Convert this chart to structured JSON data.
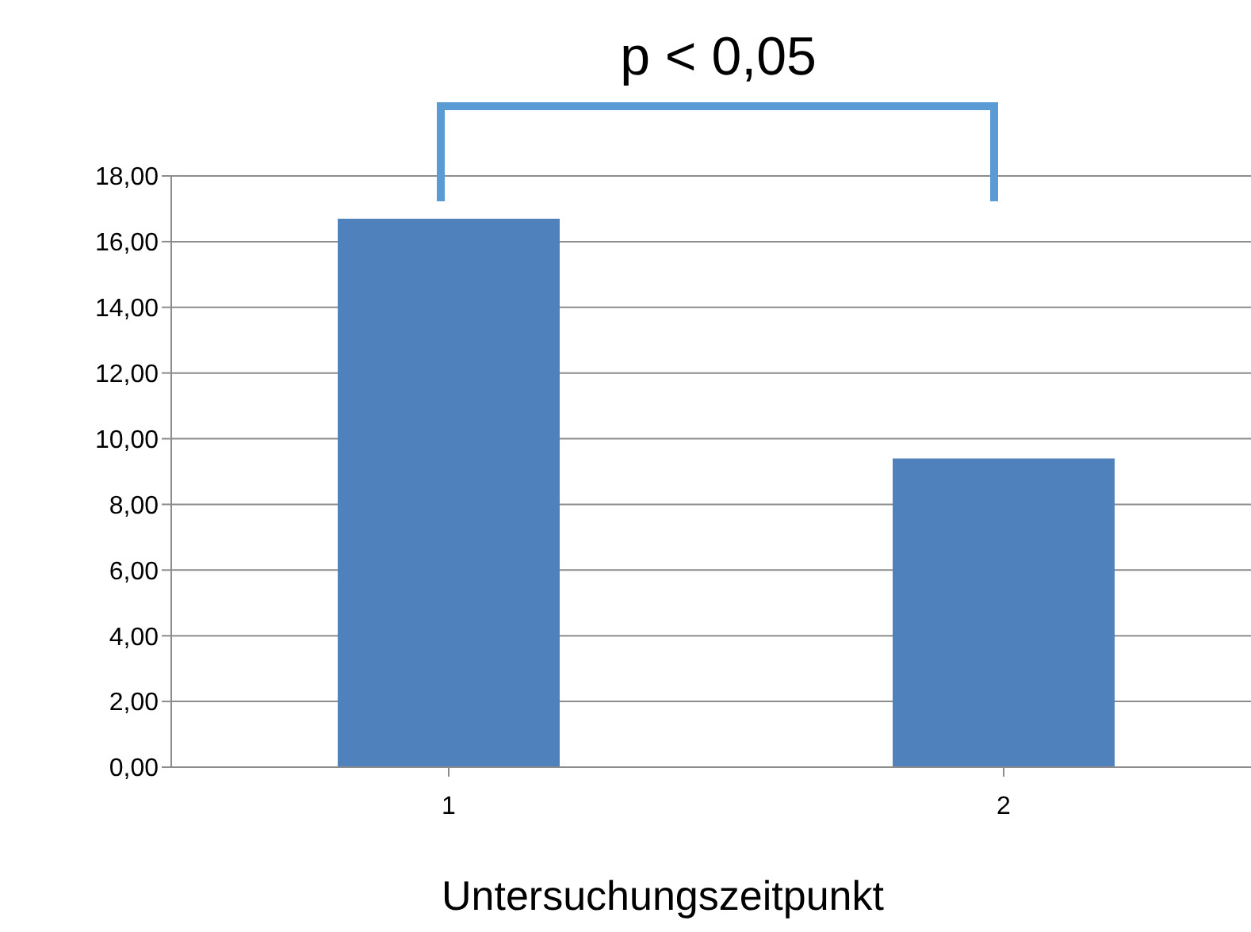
{
  "chart_data": {
    "type": "bar",
    "xlabel": "Untersuchungszeitpunkt",
    "categories": [
      "1",
      "2"
    ],
    "values": [
      16.7,
      9.4
    ],
    "color": "#4f81bd",
    "ylim": [
      0,
      18
    ],
    "yticks": [
      {
        "value": 0,
        "label": "0,00"
      },
      {
        "value": 2,
        "label": "2,00"
      },
      {
        "value": 4,
        "label": "4,00"
      },
      {
        "value": 6,
        "label": "6,00"
      },
      {
        "value": 8,
        "label": "8,00"
      },
      {
        "value": 10,
        "label": "10,00"
      },
      {
        "value": 12,
        "label": "12,00"
      },
      {
        "value": 14,
        "label": "14,00"
      },
      {
        "value": 16,
        "label": "16,00"
      },
      {
        "value": 18,
        "label": "18,00"
      }
    ],
    "grid": "y",
    "legend": false,
    "annotations": [
      "p < 0,05"
    ]
  }
}
